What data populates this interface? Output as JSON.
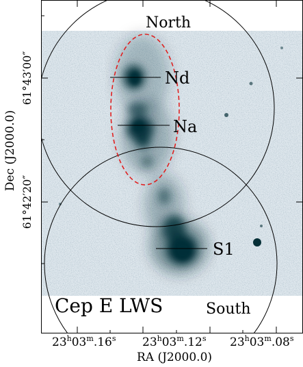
{
  "figure": {
    "field_name": "Cep E LWS",
    "region_labels": {
      "north": "North",
      "south": "South"
    },
    "sources": [
      {
        "name": "Nd"
      },
      {
        "name": "Na"
      },
      {
        "name": "S1"
      }
    ],
    "x_axis": {
      "title": "RA (J2000.0)",
      "ticks": [
        {
          "h": "23",
          "m": "03",
          "s": "16"
        },
        {
          "h": "23",
          "m": "03",
          "s": "12"
        },
        {
          "h": "23",
          "m": "03",
          "s": "08"
        }
      ]
    },
    "y_axis": {
      "title": "Dec (J2000.0)",
      "ticks": [
        {
          "label": "61°43′00″"
        },
        {
          "label": "61°42′20″"
        }
      ]
    },
    "colors": {
      "sky": "#dde6ec",
      "emission": "#062f37",
      "ellipse": "#e02020",
      "circles": "#000000"
    }
  }
}
